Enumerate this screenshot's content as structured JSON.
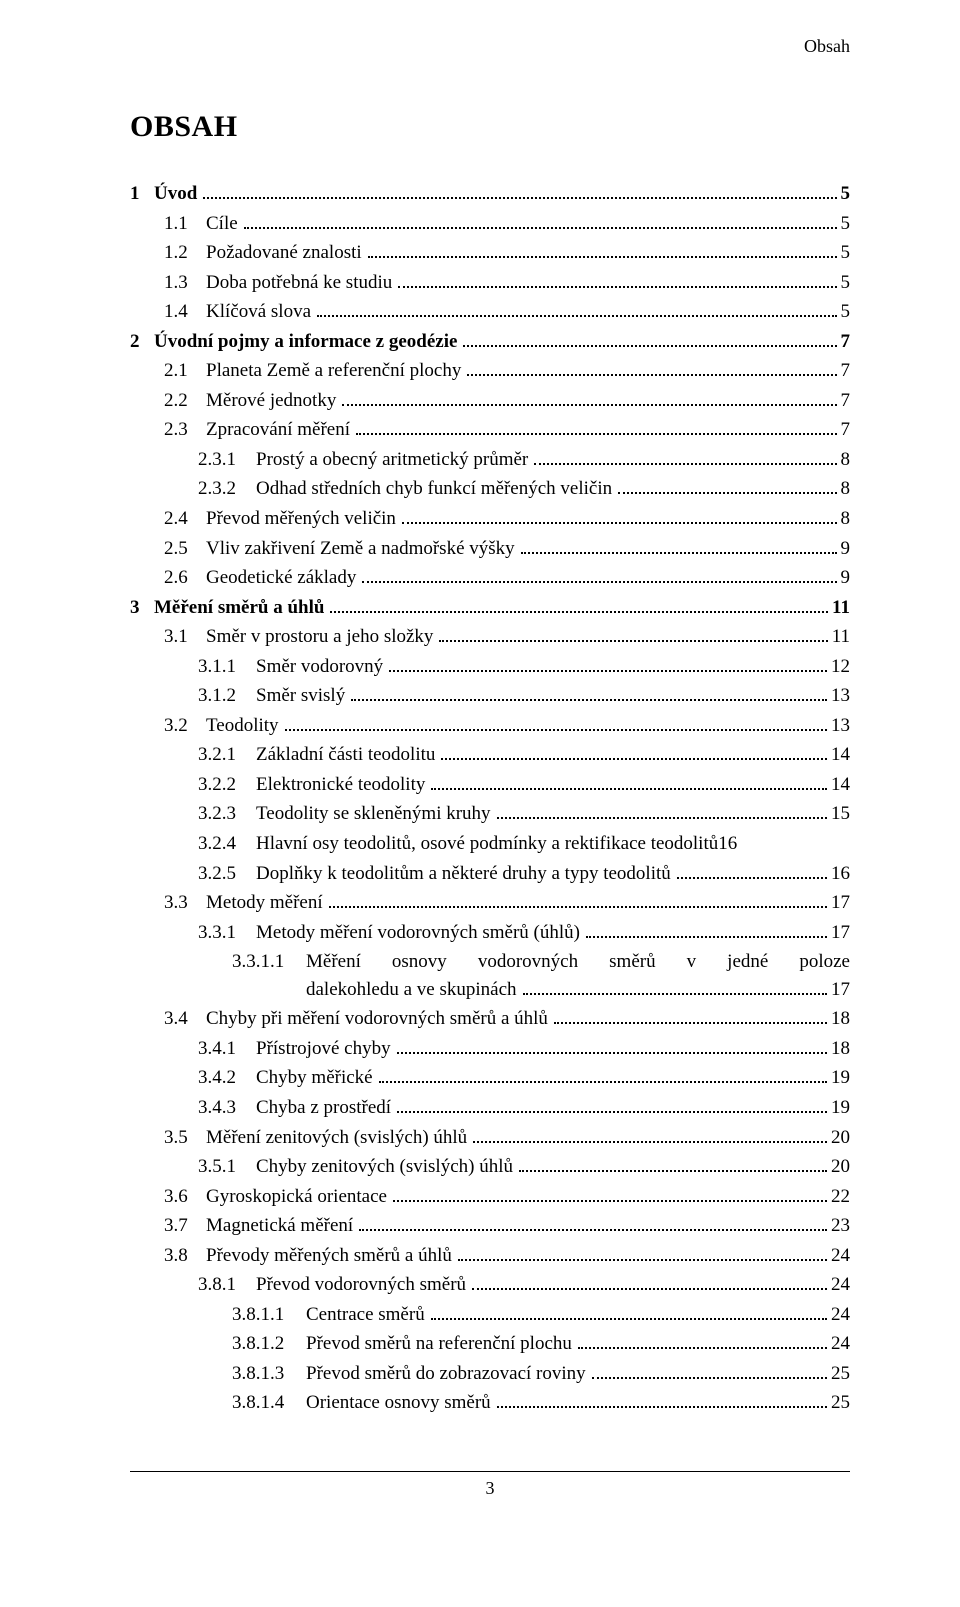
{
  "running_head": "Obsah",
  "doc_title": "OBSAH",
  "page_number": "3",
  "multiline_entry": {
    "num": "3.3.1.1",
    "text_line1": "Měření osnovy vodorovných směrů v jedné poloze",
    "text_line2": "dalekohledu a ve skupinách",
    "page": "17"
  },
  "entries": [
    {
      "level": 0,
      "num": "1",
      "title": "Úvod",
      "page": "5",
      "bold": true
    },
    {
      "level": 1,
      "num": "1.1",
      "title": "Cíle",
      "page": "5",
      "bold": false
    },
    {
      "level": 1,
      "num": "1.2",
      "title": "Požadované znalosti",
      "page": "5",
      "bold": false
    },
    {
      "level": 1,
      "num": "1.3",
      "title": "Doba potřebná ke studiu",
      "page": "5",
      "bold": false
    },
    {
      "level": 1,
      "num": "1.4",
      "title": "Klíčová slova",
      "page": "5",
      "bold": false
    },
    {
      "level": 0,
      "num": "2",
      "title": "Úvodní pojmy a informace z geodézie",
      "page": "7",
      "bold": true
    },
    {
      "level": 1,
      "num": "2.1",
      "title": "Planeta Země a referenční plochy",
      "page": "7",
      "bold": false
    },
    {
      "level": 1,
      "num": "2.2",
      "title": "Měrové jednotky",
      "page": "7",
      "bold": false
    },
    {
      "level": 1,
      "num": "2.3",
      "title": "Zpracování měření",
      "page": "7",
      "bold": false
    },
    {
      "level": 2,
      "num": "2.3.1",
      "title": "Prostý a obecný aritmetický průměr",
      "page": "8",
      "bold": false
    },
    {
      "level": 2,
      "num": "2.3.2",
      "title": "Odhad středních chyb funkcí měřených veličin",
      "page": "8",
      "bold": false
    },
    {
      "level": 1,
      "num": "2.4",
      "title": "Převod měřených veličin",
      "page": "8",
      "bold": false
    },
    {
      "level": 1,
      "num": "2.5",
      "title": "Vliv zakřivení Země a nadmořské výšky",
      "page": "9",
      "bold": false
    },
    {
      "level": 1,
      "num": "2.6",
      "title": "Geodetické základy",
      "page": "9",
      "bold": false
    },
    {
      "level": 0,
      "num": "3",
      "title": "Měření směrů a úhlů",
      "page": "11",
      "bold": true
    },
    {
      "level": 1,
      "num": "3.1",
      "title": "Směr v prostoru a jeho složky",
      "page": "11",
      "bold": false
    },
    {
      "level": 2,
      "num": "3.1.1",
      "title": "Směr vodorovný",
      "page": "12",
      "bold": false
    },
    {
      "level": 2,
      "num": "3.1.2",
      "title": "Směr svislý",
      "page": "13",
      "bold": false
    },
    {
      "level": 1,
      "num": "3.2",
      "title": "Teodolity",
      "page": "13",
      "bold": false
    },
    {
      "level": 2,
      "num": "3.2.1",
      "title": "Základní části teodolitu",
      "page": "14",
      "bold": false
    },
    {
      "level": 2,
      "num": "3.2.2",
      "title": "Elektronické teodolity",
      "page": "14",
      "bold": false
    },
    {
      "level": 2,
      "num": "3.2.3",
      "title": "Teodolity se skleněnými kruhy",
      "page": "15",
      "bold": false
    },
    {
      "level": 2,
      "num": "3.2.4",
      "title": "Hlavní osy teodolitů, osové podmínky a rektifikace teodolitů",
      "page": "16",
      "bold": false,
      "no_leader": true
    },
    {
      "level": 2,
      "num": "3.2.5",
      "title": "Doplňky k teodolitům a některé druhy a typy teodolitů",
      "page": "16",
      "bold": false
    },
    {
      "level": 1,
      "num": "3.3",
      "title": "Metody měření",
      "page": "17",
      "bold": false
    },
    {
      "level": 2,
      "num": "3.3.1",
      "title": "Metody měření vodorovných směrů (úhlů)",
      "page": "17",
      "bold": false
    },
    {
      "level": -1,
      "multiline": true
    },
    {
      "level": 1,
      "num": "3.4",
      "title": "Chyby při měření vodorovných směrů a úhlů",
      "page": "18",
      "bold": false
    },
    {
      "level": 2,
      "num": "3.4.1",
      "title": "Přístrojové chyby",
      "page": "18",
      "bold": false
    },
    {
      "level": 2,
      "num": "3.4.2",
      "title": "Chyby měřické",
      "page": "19",
      "bold": false
    },
    {
      "level": 2,
      "num": "3.4.3",
      "title": "Chyba z prostředí",
      "page": "19",
      "bold": false
    },
    {
      "level": 1,
      "num": "3.5",
      "title": "Měření zenitových (svislých) úhlů",
      "page": "20",
      "bold": false
    },
    {
      "level": 2,
      "num": "3.5.1",
      "title": "Chyby zenitových (svislých) úhlů",
      "page": "20",
      "bold": false
    },
    {
      "level": 1,
      "num": "3.6",
      "title": "Gyroskopická orientace",
      "page": "22",
      "bold": false
    },
    {
      "level": 1,
      "num": "3.7",
      "title": "Magnetická měření",
      "page": "23",
      "bold": false
    },
    {
      "level": 1,
      "num": "3.8",
      "title": "Převody měřených směrů a úhlů",
      "page": "24",
      "bold": false
    },
    {
      "level": 2,
      "num": "3.8.1",
      "title": "Převod vodorovných směrů",
      "page": "24",
      "bold": false
    },
    {
      "level": 3,
      "num": "3.8.1.1",
      "title": "Centrace směrů",
      "page": "24",
      "bold": false
    },
    {
      "level": 3,
      "num": "3.8.1.2",
      "title": "Převod směrů na referenční plochu",
      "page": "24",
      "bold": false
    },
    {
      "level": 3,
      "num": "3.8.1.3",
      "title": "Převod směrů do zobrazovací roviny",
      "page": "25",
      "bold": false
    },
    {
      "level": 3,
      "num": "3.8.1.4",
      "title": "Orientace osnovy směrů",
      "page": "25",
      "bold": false
    }
  ]
}
